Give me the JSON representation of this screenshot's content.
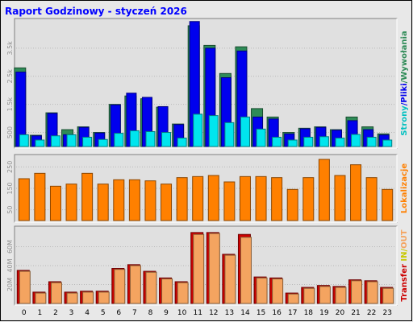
{
  "title": "Raport Godzinowy -  styczeń 2026",
  "chart_data": [
    {
      "type": "bar",
      "categories": [
        "0",
        "1",
        "2",
        "3",
        "4",
        "5",
        "6",
        "7",
        "8",
        "9",
        "10",
        "11",
        "12",
        "13",
        "14",
        "15",
        "16",
        "17",
        "18",
        "19",
        "20",
        "21",
        "22",
        "23"
      ],
      "series": [
        {
          "name": "Strony",
          "color": "#2e8b57",
          "values": [
            2800,
            400,
            1200,
            600,
            700,
            500,
            1500,
            1800,
            1700,
            1400,
            800,
            4300,
            3600,
            2600,
            3550,
            1350,
            1050,
            500,
            650,
            700,
            600,
            1050,
            700,
            450
          ]
        },
        {
          "name": "Pliki",
          "color": "#0000ee",
          "values": [
            2650,
            380,
            1180,
            420,
            680,
            480,
            1480,
            1900,
            1750,
            1420,
            780,
            4450,
            3500,
            2450,
            3400,
            1050,
            980,
            450,
            630,
            680,
            580,
            920,
            600,
            410
          ]
        },
        {
          "name": "Wywołania",
          "color": "#00e5ee",
          "values": [
            420,
            230,
            380,
            420,
            330,
            250,
            470,
            560,
            530,
            500,
            300,
            1150,
            1100,
            850,
            1050,
            620,
            330,
            230,
            330,
            350,
            300,
            430,
            330,
            230
          ]
        }
      ],
      "y_ticks": [
        "500",
        "1.5k",
        "2.5k",
        "3.5k"
      ],
      "y_tick_values": [
        500,
        1500,
        2500,
        3500
      ],
      "ylim": [
        0,
        4500
      ],
      "ylabel_parts": [
        {
          "text": "Strony",
          "color": "#00c0c0"
        },
        {
          "text": "/",
          "color": "#0000ee"
        },
        {
          "text": "Pliki",
          "color": "#0000ee"
        },
        {
          "text": "/",
          "color": "#2e8b57"
        },
        {
          "text": "Wywołania",
          "color": "#2e8b57"
        }
      ]
    },
    {
      "type": "bar",
      "categories": [
        "0",
        "1",
        "2",
        "3",
        "4",
        "5",
        "6",
        "7",
        "8",
        "9",
        "10",
        "11",
        "12",
        "13",
        "14",
        "15",
        "16",
        "17",
        "18",
        "19",
        "20",
        "21",
        "22",
        "23"
      ],
      "series": [
        {
          "name": "Lokalizacje",
          "color": "#ff8000",
          "values": [
            195,
            220,
            160,
            170,
            220,
            170,
            190,
            190,
            185,
            170,
            200,
            205,
            210,
            180,
            205,
            205,
            200,
            145,
            200,
            285,
            210,
            260,
            200,
            145
          ]
        }
      ],
      "y_ticks": [
        "50",
        "150",
        "250"
      ],
      "y_tick_values": [
        50,
        150,
        250
      ],
      "ylim": [
        0,
        300
      ],
      "ylabel_parts": [
        {
          "text": "Lokalizacje",
          "color": "#ff8000"
        }
      ]
    },
    {
      "type": "bar",
      "categories": [
        "0",
        "1",
        "2",
        "3",
        "4",
        "5",
        "6",
        "7",
        "8",
        "9",
        "10",
        "11",
        "12",
        "13",
        "14",
        "15",
        "16",
        "17",
        "18",
        "19",
        "20",
        "21",
        "22",
        "23"
      ],
      "series": [
        {
          "name": "Transfer",
          "color": "#cc0000",
          "values": [
            35,
            12,
            23,
            12,
            13,
            13,
            37,
            41,
            34,
            27,
            23,
            75,
            75,
            52,
            73,
            28,
            27,
            11,
            17,
            19,
            18,
            25,
            24,
            17
          ]
        },
        {
          "name": "IN/OUT",
          "color": "#f4a460",
          "values": [
            34,
            11,
            22,
            11,
            12,
            12,
            36,
            40,
            33,
            26,
            22,
            73,
            74,
            51,
            70,
            27,
            26,
            10,
            16,
            18,
            17,
            24,
            23,
            16
          ]
        }
      ],
      "y_ticks": [
        "20M",
        "40M",
        "60M"
      ],
      "y_tick_values": [
        20,
        40,
        60
      ],
      "ylim": [
        0,
        80
      ],
      "ylabel_parts": [
        {
          "text": "Transfer",
          "color": "#cc0000"
        },
        {
          "text": " IN",
          "color": "#c8c800"
        },
        {
          "text": "/",
          "color": "#c8c800"
        },
        {
          "text": "OUT",
          "color": "#f4a460"
        }
      ]
    }
  ]
}
